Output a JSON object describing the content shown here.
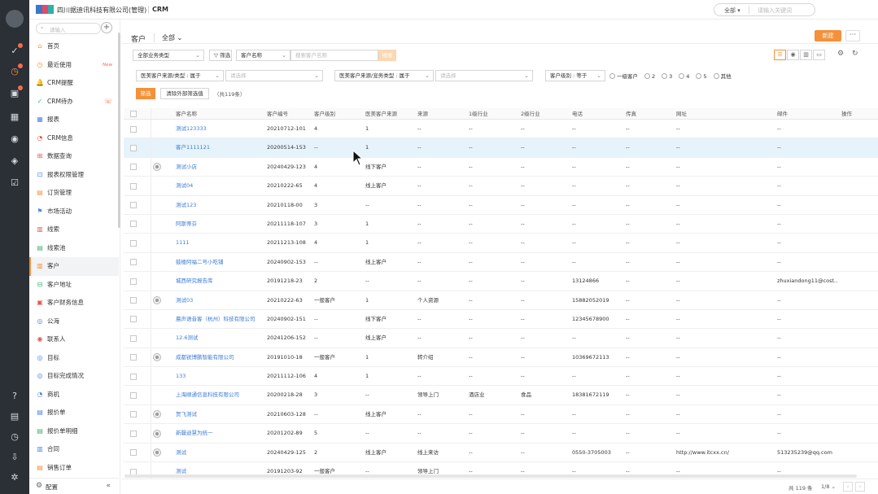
{
  "topbar": {
    "company": "四川据迪讯科技有限公司(管理)",
    "app": "CRM",
    "search_scope": "全部",
    "search_placeholder": "请输入关键词",
    "brand_colors": [
      "#3a78c9",
      "#e34a6a",
      "#2fb0a8"
    ]
  },
  "sidebar": {
    "search_placeholder": "请输入",
    "items": [
      {
        "label": "首页",
        "icon": "home-icon",
        "glyph": "⌂",
        "color": "#f4913a"
      },
      {
        "label": "最近使用",
        "icon": "clock-icon",
        "glyph": "◷",
        "color": "#f4913a",
        "badge": "New"
      },
      {
        "label": "CRM提醒",
        "icon": "bell-icon",
        "glyph": "🔔",
        "color": "#f4913a"
      },
      {
        "label": "CRM待办",
        "icon": "check-icon",
        "glyph": "✓",
        "color": "#3fb57a",
        "extra": "☏"
      },
      {
        "label": "报表",
        "icon": "report-icon",
        "glyph": "▦",
        "color": "#4a86e8"
      },
      {
        "label": "CRM信息",
        "icon": "info-icon",
        "glyph": "◔",
        "color": "#e05a4a"
      },
      {
        "label": "数据查询",
        "icon": "query-icon",
        "glyph": "⊞",
        "color": "#e05a4a"
      },
      {
        "label": "报表权限管理",
        "icon": "permission-icon",
        "glyph": "⊡",
        "color": "#4a86e8"
      },
      {
        "label": "订货管理",
        "icon": "order-icon",
        "glyph": "▤",
        "color": "#f4913a"
      },
      {
        "label": "市场活动",
        "icon": "campaign-icon",
        "glyph": "⚑",
        "color": "#4a86e8"
      },
      {
        "label": "线索",
        "icon": "lead-icon",
        "glyph": "▥",
        "color": "#e05a4a"
      },
      {
        "label": "线索池",
        "icon": "lead-pool-icon",
        "glyph": "▤",
        "color": "#3fb57a"
      },
      {
        "label": "客户",
        "icon": "customer-icon",
        "glyph": "▥",
        "color": "#f4913a",
        "active": true
      },
      {
        "label": "客户地址",
        "icon": "address-icon",
        "glyph": "⊟",
        "color": "#3fb57a"
      },
      {
        "label": "客户财务信息",
        "icon": "finance-icon",
        "glyph": "▣",
        "color": "#e05a4a"
      },
      {
        "label": "公海",
        "icon": "sea-icon",
        "glyph": "◎",
        "color": "#4a86e8"
      },
      {
        "label": "联系人",
        "icon": "contact-icon",
        "glyph": "◉",
        "color": "#e05a4a"
      },
      {
        "label": "目标",
        "icon": "target-icon",
        "glyph": "◎",
        "color": "#4a86e8"
      },
      {
        "label": "目标完成情况",
        "icon": "goal-progress-icon",
        "glyph": "◎",
        "color": "#4a86e8"
      },
      {
        "label": "商机",
        "icon": "opportunity-icon",
        "glyph": "◔",
        "color": "#4a86e8"
      },
      {
        "label": "报价单",
        "icon": "quote-icon",
        "glyph": "▤",
        "color": "#4a86e8"
      },
      {
        "label": "报价单明细",
        "icon": "quote-detail-icon",
        "glyph": "▤",
        "color": "#3fb57a"
      },
      {
        "label": "合同",
        "icon": "contract-icon",
        "glyph": "▥",
        "color": "#4a86e8"
      },
      {
        "label": "销售订单",
        "icon": "sales-order-icon",
        "glyph": "▤",
        "color": "#f4913a"
      }
    ],
    "settings_label": "配置"
  },
  "page": {
    "title": "客户",
    "scope": "全部",
    "new_button": "新建",
    "more_button": "···"
  },
  "filters": {
    "biz_type": "全部业务类型",
    "filter_label": "筛选",
    "field_select": "客户名称",
    "keyword_placeholder": "搜索客户名称",
    "search_btn": "搜索",
    "cond1_field": "医美客户来源/类型",
    "cond1_op": "属于",
    "cond1_ph": "请选择",
    "cond2_field": "医美客户来源/宠务类型",
    "cond2_op": "属于",
    "cond2_ph": "请选择",
    "cond3_field": "客户级别",
    "cond3_op": "等于",
    "level_options": [
      "一级客户",
      "2",
      "3",
      "4",
      "5",
      "其他"
    ],
    "apply_btn": "筛选",
    "clear_btn": "清除外部筛选值",
    "count": "（共119条）"
  },
  "table": {
    "columns": [
      "客户名称",
      "客户编号",
      "客户级别",
      "医美客户来源",
      "来源",
      "1级行业",
      "2级行业",
      "电话",
      "传真",
      "网址",
      "邮件",
      "操作"
    ],
    "rows": [
      {
        "icon": false,
        "cells": [
          "测试123333",
          "20210712-101",
          "4",
          "1",
          "--",
          "--",
          "--",
          "--",
          "--",
          "--",
          "--",
          ""
        ]
      },
      {
        "icon": false,
        "hl": true,
        "cells": [
          "客户1111121",
          "20200514-153",
          "--",
          "1",
          "--",
          "--",
          "--",
          "--",
          "--",
          "--",
          "--",
          ""
        ]
      },
      {
        "icon": true,
        "cells": [
          "测试小店",
          "20240429-123",
          "4",
          "线下客户",
          "--",
          "--",
          "--",
          "--",
          "--",
          "--",
          "--",
          ""
        ]
      },
      {
        "icon": false,
        "cells": [
          "测试04",
          "20210222-65",
          "4",
          "线上客户",
          "--",
          "--",
          "--",
          "--",
          "--",
          "--",
          "--",
          ""
        ]
      },
      {
        "icon": false,
        "cells": [
          "测试123",
          "20210118-00",
          "3",
          "--",
          "--",
          "--",
          "--",
          "--",
          "--",
          "--",
          "--",
          ""
        ]
      },
      {
        "icon": false,
        "cells": [
          "阿斯蒂芬",
          "20211118-107",
          "3",
          "1",
          "--",
          "--",
          "--",
          "--",
          "--",
          "--",
          "--",
          ""
        ]
      },
      {
        "icon": false,
        "cells": [
          "1111",
          "20211213-108",
          "4",
          "1",
          "--",
          "--",
          "--",
          "--",
          "--",
          "--",
          "--",
          ""
        ]
      },
      {
        "icon": false,
        "cells": [
          "鼓楼阿福二号小吃铺",
          "20240902-153",
          "--",
          "线上客户",
          "--",
          "--",
          "--",
          "--",
          "--",
          "--",
          "--",
          ""
        ]
      },
      {
        "icon": false,
        "cells": [
          "城西研究报告库",
          "20191218-23",
          "2",
          "--",
          "--",
          "--",
          "--",
          "13124866",
          "--",
          "--",
          "zhuxiandong11@cost...",
          ""
        ]
      },
      {
        "icon": true,
        "cells": [
          "测试03",
          "20210222-63",
          "一般客户",
          "1",
          "个人资源",
          "--",
          "--",
          "15882052019",
          "--",
          "--",
          "--",
          ""
        ]
      },
      {
        "icon": false,
        "cells": [
          "晨声语音客（杭州）科技有限公司",
          "20240902-151",
          "--",
          "线下客户",
          "--",
          "--",
          "--",
          "12345678900",
          "--",
          "--",
          "--",
          ""
        ]
      },
      {
        "icon": false,
        "cells": [
          "12.6测试",
          "20241206-152",
          "--",
          "线上客户",
          "--",
          "--",
          "--",
          "--",
          "--",
          "--",
          "--",
          ""
        ]
      },
      {
        "icon": true,
        "cells": [
          "成都锐博鹏智能有限公司",
          "20191010-18",
          "一般客户",
          "1",
          "转介绍",
          "--",
          "--",
          "10369672113",
          "--",
          "--",
          "--",
          ""
        ]
      },
      {
        "icon": false,
        "cells": [
          "133",
          "20211112-106",
          "4",
          "1",
          "--",
          "--",
          "--",
          "--",
          "--",
          "--",
          "--",
          ""
        ]
      },
      {
        "icon": false,
        "cells": [
          "上海顺通信息科技有限公司",
          "20200218-28",
          "3",
          "--",
          "领导上门",
          "酒店业",
          "食品",
          "18381672119",
          "--",
          "--",
          "--",
          ""
        ]
      },
      {
        "icon": true,
        "cells": [
          "贺飞测试",
          "20210603-128",
          "--",
          "线上客户",
          "--",
          "--",
          "--",
          "--",
          "--",
          "--",
          "--",
          ""
        ]
      },
      {
        "icon": true,
        "cells": [
          "新疆迪慧为统一",
          "20201202-89",
          "5",
          "--",
          "--",
          "--",
          "--",
          "--",
          "--",
          "--",
          "--",
          ""
        ]
      },
      {
        "icon": true,
        "cells": [
          "测试",
          "20240429-125",
          "2",
          "线上客户",
          "线上来访",
          "--",
          "--",
          "0550-3705003",
          "--",
          "http://www.itcxx.cn/",
          "513235239@qq.com",
          ""
        ]
      },
      {
        "icon": false,
        "cells": [
          "测试",
          "20191203-92",
          "一般客户",
          "--",
          "领导上门",
          "--",
          "--",
          "--",
          "--",
          "--",
          "--",
          ""
        ]
      }
    ]
  },
  "footer": {
    "total": "共 119 条",
    "pages": "1/8"
  }
}
